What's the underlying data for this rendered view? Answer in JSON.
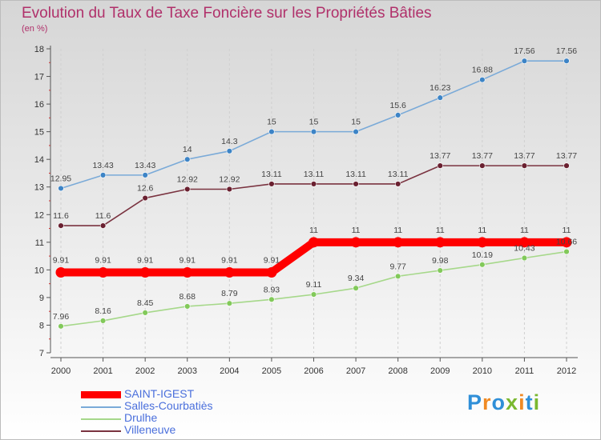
{
  "title": "Evolution du Taux de Taxe Foncière sur les Propriétés Bâties",
  "subtitle": "(en %)",
  "logo": "Proxiti",
  "chart_data": {
    "type": "line",
    "title": "Evolution du Taux de Taxe Foncière sur les Propriétés Bâties",
    "ylabel": "(en %)",
    "xlabel": "",
    "x": [
      "2000",
      "2001",
      "2002",
      "2003",
      "2004",
      "2005",
      "2006",
      "2007",
      "2008",
      "2009",
      "2010",
      "2011",
      "2012"
    ],
    "ylim": [
      7,
      18
    ],
    "yticks": [
      7,
      8,
      9,
      10,
      11,
      12,
      13,
      14,
      15,
      16,
      17,
      18
    ],
    "legend_position": "bottom-left",
    "series": [
      {
        "name": "SAINT-IGEST",
        "color": "#ff0000",
        "values": [
          9.91,
          9.91,
          9.91,
          9.91,
          9.91,
          9.91,
          11,
          11,
          11,
          11,
          11,
          11,
          11
        ],
        "labels": [
          "9.91",
          "9.91",
          "9.91",
          "9.91",
          "9.91",
          "9.91",
          "11",
          "11",
          "11",
          "11",
          "11",
          "11",
          "11"
        ]
      },
      {
        "name": "Salles-Courbatiès",
        "color": "#7aaad8",
        "marker_color": "#3d84c6",
        "values": [
          12.95,
          13.43,
          13.43,
          14,
          14.3,
          15,
          15,
          15,
          15.6,
          16.23,
          16.88,
          17.56,
          17.56
        ],
        "labels": [
          "12.95",
          "13.43",
          "13.43",
          "14",
          "14.3",
          "15",
          "15",
          "15",
          "15.6",
          "16.23",
          "16.88",
          "17.56",
          "17.56"
        ]
      },
      {
        "name": "Drulhe",
        "color": "#a6d88a",
        "marker_color": "#82c95a",
        "values": [
          7.96,
          8.16,
          8.45,
          8.68,
          8.79,
          8.93,
          9.11,
          9.34,
          9.77,
          9.98,
          10.19,
          10.43,
          10.66
        ],
        "labels": [
          "7.96",
          "8.16",
          "8.45",
          "8.68",
          "8.79",
          "8.93",
          "9.11",
          "9.34",
          "9.77",
          "9.98",
          "10.19",
          "10.43",
          "10.66"
        ]
      },
      {
        "name": "Villeneuve",
        "color": "#7a3340",
        "marker_color": "#6a2030",
        "values": [
          11.6,
          11.6,
          12.6,
          12.92,
          12.92,
          13.11,
          13.11,
          13.11,
          13.11,
          13.77,
          13.77,
          13.77,
          13.77
        ],
        "labels": [
          "11.6",
          "11.6",
          "12.6",
          "12.92",
          "12.92",
          "13.11",
          "13.11",
          "13.11",
          "13.11",
          "13.77",
          "13.77",
          "13.77",
          "13.77"
        ]
      }
    ]
  }
}
